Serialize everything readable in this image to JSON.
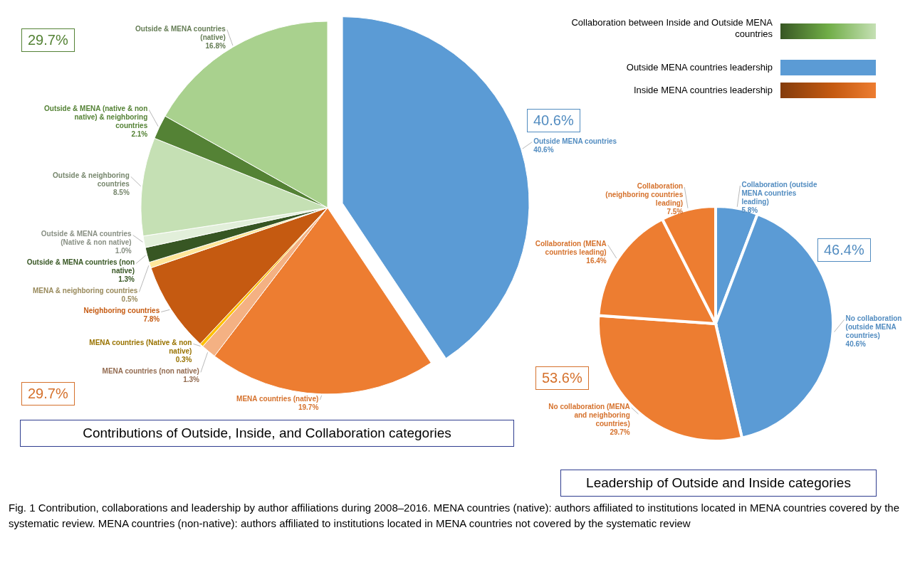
{
  "chart_data": [
    {
      "type": "pie",
      "title": "Contributions of Outside, Inside, and Collaboration categories",
      "categories": [
        "Outside MENA countries",
        "MENA countries (native)",
        "MENA countries (non native)",
        "MENA countries (Native & non native)",
        "Neighboring countries",
        "MENA & neighboring countries",
        "Outside & MENA countries (non native)",
        "Outside & MENA countries (Native & non native)",
        "Outside & neighboring countries",
        "Outside & MENA (native & non native) & neighboring countries",
        "Outside & MENA countries (native)"
      ],
      "values": [
        40.6,
        19.7,
        1.3,
        0.3,
        7.8,
        0.5,
        1.3,
        1.0,
        8.5,
        2.1,
        16.8
      ],
      "value_labels": [
        "40.6%",
        "19.7%",
        "1.3%",
        "0.3%",
        "7.8%",
        "0.5%",
        "1.3%",
        "1.0%",
        "8.5%",
        "2.1%",
        "16.8%"
      ],
      "colors": [
        "#5b9bd5",
        "#ed7d31",
        "#f4b183",
        "#ffc000",
        "#c55a11",
        "#ffe699",
        "#375623",
        "#e2efda",
        "#c5e0b4",
        "#548235",
        "#a9d18e"
      ],
      "annotations": [
        "29.7%",
        "40.6%",
        "29.7%",
        "Collaboration between Inside and Outside MENA countries",
        "Outside MENA countries leadership",
        "Inside MENA countries leadership",
        "Fig. 1 Contribution, collaborations and leadership by author affiliations during 2008–2016. MENA countries (native): authors affiliated to institutions located in MENA countries covered by the systematic review. MENA countries (non-native): authors affiliated to institutions located in MENA countries not covered by the systematic review"
      ]
    },
    {
      "type": "pie",
      "title": "Leadership of Outside and Inside categories",
      "categories": [
        "Collaboration (outside MENA countries leading)",
        "No collaboration (outside MENA countries)",
        "No collaboration (MENA and neighboring countries)",
        "Collaboration (MENA countries leading)",
        "Collaboration (neighboring countries leading)"
      ],
      "values": [
        5.8,
        40.6,
        29.7,
        16.4,
        7.5
      ],
      "value_labels": [
        "5.8%",
        "40.6%",
        "29.7%",
        "16.4%",
        "7.5%"
      ],
      "colors": [
        "#5b9bd5",
        "#5b9bd5",
        "#ed7d31",
        "#ed7d31",
        "#ed7d31"
      ],
      "annotations": [
        "46.4%",
        "53.6%"
      ]
    }
  ]
}
